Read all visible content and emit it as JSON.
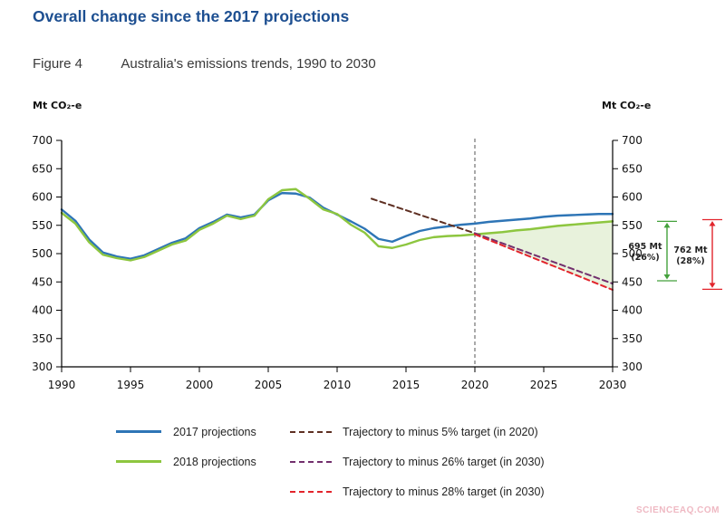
{
  "page": {
    "title": "Overall change since the 2017 projections",
    "figure_label": "Figure 4",
    "figure_caption": "Australia's emissions trends, 1990 to 2030",
    "watermark": "SCIENCEAQ.COM"
  },
  "chart_data": {
    "type": "line",
    "ylabel_left": "Mt CO₂-e",
    "ylabel_right": "Mt CO₂-e",
    "ylim": [
      300,
      700
    ],
    "ytick_step": 50,
    "xlim": [
      1990,
      2030
    ],
    "xticks": [
      1990,
      1995,
      2000,
      2005,
      2010,
      2015,
      2020,
      2025,
      2030
    ],
    "vertical_marker_year": 2020,
    "series": [
      {
        "name": "2017 projections",
        "color": "#2e75b6",
        "style": "solid",
        "x_start": 1990,
        "values": [
          578,
          558,
          525,
          502,
          495,
          491,
          497,
          508,
          519,
          527,
          545,
          556,
          569,
          564,
          569,
          594,
          607,
          606,
          599,
          581,
          569,
          557,
          544,
          526,
          521,
          531,
          540,
          545,
          548,
          551,
          553,
          556,
          558,
          560,
          562,
          565,
          567,
          568,
          569,
          570,
          570
        ]
      },
      {
        "name": "2018 projections",
        "color": "#8dc63f",
        "style": "solid",
        "x_start": 1990,
        "values": [
          572,
          553,
          520,
          498,
          492,
          488,
          494,
          505,
          516,
          523,
          542,
          553,
          567,
          561,
          567,
          596,
          612,
          614,
          597,
          578,
          570,
          551,
          537,
          513,
          510,
          516,
          524,
          529,
          531,
          532,
          534,
          536,
          538,
          541,
          543,
          546,
          549,
          551,
          553,
          555,
          557
        ]
      },
      {
        "name": "Trajectory to minus 5% target (in 2020)",
        "color": "#5e2f22",
        "style": "dashed",
        "x": [
          2012.5,
          2020
        ],
        "values": [
          597,
          536
        ]
      },
      {
        "name": "Trajectory to minus 26% target (in 2030)",
        "color": "#722f6d",
        "style": "dashed",
        "x": [
          2020,
          2030
        ],
        "values": [
          536,
          447
        ]
      },
      {
        "name": "Trajectory to minus 28% target (in 2030)",
        "color": "#e2242c",
        "style": "dashed",
        "x": [
          2020,
          2030
        ],
        "values": [
          534,
          436
        ]
      }
    ],
    "shaded_area": {
      "color": "#e8f2dc",
      "between": [
        "2018 projections",
        "Trajectory to minus 28% target (in 2030)"
      ],
      "from_year": 2020,
      "to_year": 2030
    },
    "annotations": [
      {
        "label_line1": "695 Mt",
        "label_line2": "(26%)",
        "color": "#44a13c",
        "from_value": 557,
        "to_value": 452
      },
      {
        "label_line1": "762 Mt",
        "label_line2": "(28%)",
        "color": "#e2242c",
        "from_value": 560,
        "to_value": 437
      }
    ]
  },
  "legend": {
    "left": [
      {
        "label": "2017 projections",
        "color": "#2e75b6",
        "style": "solid"
      },
      {
        "label": "2018 projections",
        "color": "#8dc63f",
        "style": "solid"
      }
    ],
    "right": [
      {
        "label": "Trajectory to minus 5% target (in 2020)",
        "color": "#5e2f22",
        "style": "dashed"
      },
      {
        "label": "Trajectory to minus 26% target (in 2030)",
        "color": "#722f6d",
        "style": "dashed"
      },
      {
        "label": "Trajectory to minus 28% target (in 2030)",
        "color": "#e2242c",
        "style": "dashed"
      }
    ]
  }
}
